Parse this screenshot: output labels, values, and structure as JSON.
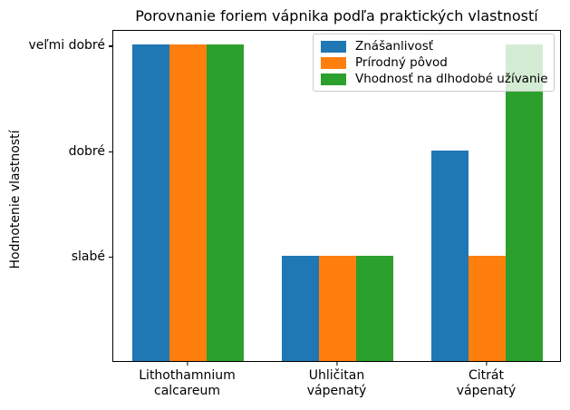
{
  "chart_data": {
    "type": "bar",
    "title": "Porovnanie foriem vápnika podľa praktických vlastností",
    "xlabel": "",
    "ylabel": "Hodnotenie vlastností",
    "categories": [
      "Lithothamnium\ncalcareum",
      "Uhličitan\nvápenatý",
      "Citrát\nvápenatý"
    ],
    "series": [
      {
        "name": "Znášanlivosť",
        "color": "#1f77b4",
        "values": [
          3,
          1,
          2
        ]
      },
      {
        "name": "Prírodný pôvod",
        "color": "#ff7f0e",
        "values": [
          3,
          1,
          1
        ]
      },
      {
        "name": "Vhodnosť na dlhodobé užívanie",
        "color": "#2ca02c",
        "values": [
          3,
          1,
          3
        ]
      }
    ],
    "yticks": [
      {
        "value": 1,
        "label": "slabé"
      },
      {
        "value": 2,
        "label": "dobré"
      },
      {
        "value": 3,
        "label": "veľmi dobré"
      }
    ],
    "ylim": [
      0,
      3.15
    ],
    "bar_width_fraction": 0.25,
    "grid": false,
    "legend_position": "upper right",
    "legend_framealpha": 0.8,
    "spine_color": "#000000",
    "background_color": "#ffffff"
  }
}
